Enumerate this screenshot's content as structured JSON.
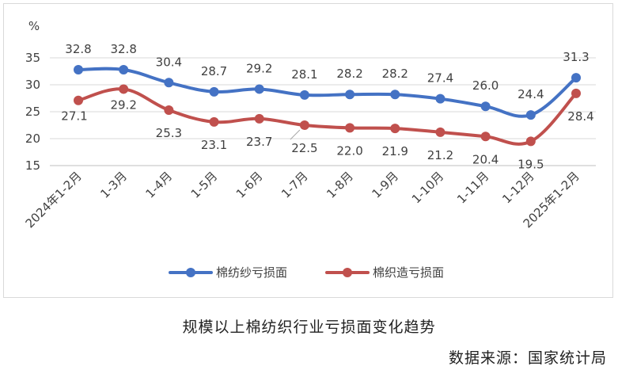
{
  "chart_data": {
    "type": "line",
    "unit": "%",
    "categories": [
      "2024年1-2月",
      "1-3月",
      "1-4月",
      "1-5月",
      "1-6月",
      "1-7月",
      "1-8月",
      "1-9月",
      "1-10月",
      "1-11月",
      "1-12月",
      "2025年1-2月"
    ],
    "series": [
      {
        "name": "棉纺纱亏损面",
        "color": "#4472c4",
        "values": [
          32.8,
          32.8,
          30.4,
          28.7,
          29.2,
          28.1,
          28.2,
          28.2,
          27.4,
          26.0,
          24.4,
          31.3
        ],
        "labels": [
          "32.8",
          "32.8",
          "30.4",
          "28.7",
          "29.2",
          "28.1",
          "28.2",
          "28.2",
          "27.4",
          "26.0",
          "24.4",
          "31.3"
        ]
      },
      {
        "name": "棉织造亏损面",
        "color": "#c0504d",
        "values": [
          27.1,
          29.2,
          25.3,
          23.1,
          23.7,
          22.5,
          22.0,
          21.9,
          21.2,
          20.4,
          19.5,
          28.4
        ],
        "labels": [
          "27.1",
          "29.2",
          "25.3",
          "23.1",
          "23.7",
          "22.5",
          "22.0",
          "21.9",
          "21.2",
          "20.4",
          "19.5",
          "28.4"
        ]
      }
    ],
    "yticks": [
      "15",
      "20",
      "25",
      "30",
      "35"
    ],
    "ylim": [
      15,
      37
    ],
    "grid": true,
    "legend": "bottom"
  },
  "caption": "规模以上棉纺织行业亏损面变化趋势",
  "source": "数据来源：国家统计局"
}
